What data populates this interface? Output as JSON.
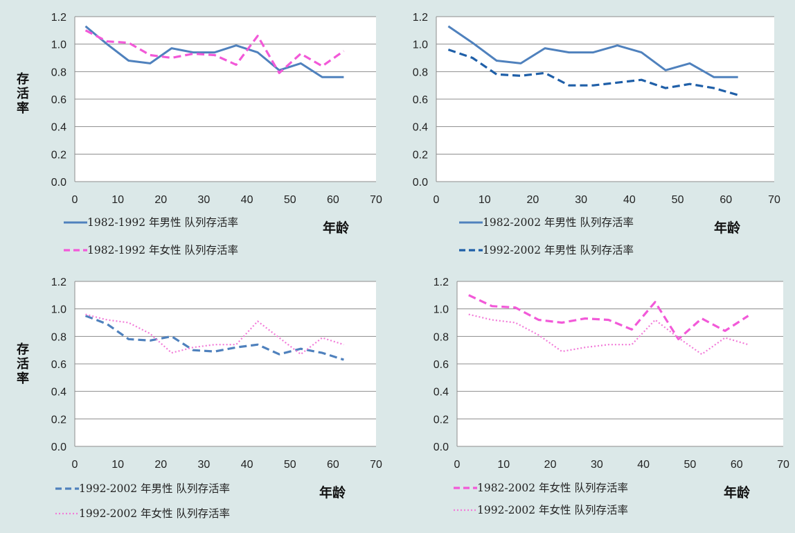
{
  "colors": {
    "background": "#dbe8e8",
    "plot_area": "#ffffff",
    "blue": "#4f81bd",
    "blue_dark": "#1f5fa8",
    "pink": "#f259d8",
    "pink_dot": "#f27ad8",
    "grid": "#8c8c8c"
  },
  "chart_data": [
    {
      "type": "line",
      "title": "",
      "ylabel": "存活率",
      "xlabel": "年龄",
      "xlim": [
        0,
        70
      ],
      "ylim": [
        0,
        1.2
      ],
      "x_ticks": [
        "0",
        "10",
        "20",
        "30",
        "40",
        "50",
        "60",
        "70"
      ],
      "y_ticks": [
        "0.0",
        "0.2",
        "0.4",
        "0.6",
        "0.8",
        "1.0",
        "1.2"
      ],
      "grid": true,
      "legend_position": "bottom-left",
      "x": [
        2.5,
        7.5,
        12.5,
        17.5,
        22.5,
        27.5,
        32.5,
        37.5,
        42.5,
        47.5,
        52.5,
        57.5,
        62.5
      ],
      "series": [
        {
          "name": "1982-1992 年男性 队列存活率",
          "color": "#4f81bd",
          "style": "solid",
          "values": [
            1.13,
            1.0,
            0.88,
            0.86,
            0.97,
            0.94,
            0.94,
            0.99,
            0.94,
            0.81,
            0.86,
            0.76,
            0.76
          ]
        },
        {
          "name": "1982-1992 年女性 队列存活率",
          "color": "#f259d8",
          "style": "dash",
          "values": [
            1.1,
            1.02,
            1.01,
            0.92,
            0.9,
            0.93,
            0.92,
            0.85,
            1.06,
            0.79,
            0.93,
            0.84,
            0.95
          ]
        }
      ]
    },
    {
      "type": "line",
      "title": "",
      "ylabel": "",
      "xlabel": "年龄",
      "xlim": [
        0,
        70
      ],
      "ylim": [
        0,
        1.2
      ],
      "x_ticks": [
        "0",
        "10",
        "20",
        "30",
        "40",
        "50",
        "60",
        "70"
      ],
      "y_ticks": [
        "0.0",
        "0.2",
        "0.4",
        "0.6",
        "0.8",
        "1.0",
        "1.2"
      ],
      "grid": true,
      "legend_position": "bottom-left",
      "x": [
        2.5,
        7.5,
        12.5,
        17.5,
        22.5,
        27.5,
        32.5,
        37.5,
        42.5,
        47.5,
        52.5,
        57.5,
        62.5
      ],
      "series": [
        {
          "name": "1982-2002 年男性 队列存活率",
          "color": "#4f81bd",
          "style": "solid",
          "values": [
            1.13,
            1.01,
            0.88,
            0.86,
            0.97,
            0.94,
            0.94,
            0.99,
            0.94,
            0.81,
            0.86,
            0.76,
            0.76
          ]
        },
        {
          "name": "1992-2002 年男性 队列存活率",
          "color": "#1f5fa8",
          "style": "dash",
          "values": [
            0.96,
            0.9,
            0.78,
            0.77,
            0.79,
            0.7,
            0.7,
            0.72,
            0.74,
            0.68,
            0.71,
            0.68,
            0.63
          ]
        }
      ]
    },
    {
      "type": "line",
      "title": "",
      "ylabel": "存活率",
      "xlabel": "年龄",
      "xlim": [
        0,
        70
      ],
      "ylim": [
        0,
        1.2
      ],
      "x_ticks": [
        "0",
        "10",
        "20",
        "30",
        "40",
        "50",
        "60",
        "70"
      ],
      "y_ticks": [
        "0.0",
        "0.2",
        "0.4",
        "0.6",
        "0.8",
        "1.0",
        "1.2"
      ],
      "grid": true,
      "legend_position": "bottom-left",
      "x": [
        2.5,
        7.5,
        12.5,
        17.5,
        22.5,
        27.5,
        32.5,
        37.5,
        42.5,
        47.5,
        52.5,
        57.5,
        62.5
      ],
      "series": [
        {
          "name": "1992-2002 年男性 队列存活率",
          "color": "#4f81bd",
          "style": "dash",
          "values": [
            0.95,
            0.89,
            0.78,
            0.77,
            0.8,
            0.7,
            0.69,
            0.72,
            0.74,
            0.67,
            0.71,
            0.68,
            0.63
          ]
        },
        {
          "name": "1992-2002 年女性 队列存活率",
          "color": "#f27ad8",
          "style": "dot",
          "values": [
            0.96,
            0.92,
            0.9,
            0.82,
            0.68,
            0.72,
            0.74,
            0.74,
            0.91,
            0.79,
            0.67,
            0.79,
            0.74
          ]
        }
      ]
    },
    {
      "type": "line",
      "title": "",
      "ylabel": "",
      "xlabel": "年龄",
      "xlim": [
        0,
        70
      ],
      "ylim": [
        0,
        1.2
      ],
      "x_ticks": [
        "0",
        "10",
        "20",
        "30",
        "40",
        "50",
        "60",
        "70"
      ],
      "y_ticks": [
        "0.0",
        "0.2",
        "0.4",
        "0.6",
        "0.8",
        "1.0",
        "1.2"
      ],
      "grid": true,
      "legend_position": "bottom-left",
      "x": [
        2.5,
        7.5,
        12.5,
        17.5,
        22.5,
        27.5,
        32.5,
        37.5,
        42.5,
        47.5,
        52.5,
        57.5,
        62.5
      ],
      "series": [
        {
          "name": "1982-2002 年女性 队列存活率",
          "color": "#f259d8",
          "style": "dash",
          "values": [
            1.1,
            1.02,
            1.01,
            0.92,
            0.9,
            0.93,
            0.92,
            0.85,
            1.05,
            0.78,
            0.93,
            0.84,
            0.95
          ]
        },
        {
          "name": "1992-2002 年女性 队列存活率",
          "color": "#f27ad8",
          "style": "dot",
          "values": [
            0.96,
            0.92,
            0.9,
            0.81,
            0.69,
            0.72,
            0.74,
            0.74,
            0.92,
            0.79,
            0.67,
            0.79,
            0.74
          ]
        }
      ]
    }
  ]
}
